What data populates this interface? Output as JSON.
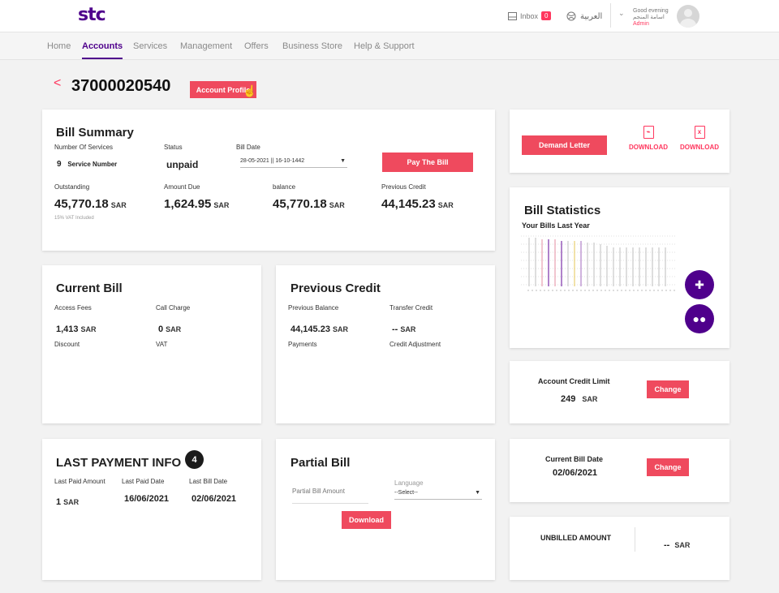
{
  "header": {
    "logo": "stc",
    "inbox_label": "Inbox",
    "inbox_count": "0",
    "language": "العربية",
    "greeting": "Good evening",
    "user_name": "اسامة المنجم",
    "user_role": "Admin"
  },
  "nav": [
    "Home",
    "Accounts",
    "Services",
    "Management",
    "Offers",
    "Business Store",
    "Help & Support"
  ],
  "account": {
    "number": "37000020540",
    "profile_button": "Account Profile"
  },
  "bill_summary": {
    "title": "Bill Summary",
    "services_label": "Number Of Services",
    "services_count": "9",
    "services_unit": "Service Number",
    "status_label": "Status",
    "status_value": "unpaid",
    "bill_date_label": "Bill Date",
    "bill_date_value": "28-05-2021 || 16-10-1442",
    "pay_button": "Pay The Bill",
    "outstanding_label": "Outstanding",
    "outstanding_value": "45,770.18",
    "vat_note": "15% VAT Included",
    "amount_due_label": "Amount Due",
    "amount_due_value": "1,624.95",
    "balance_label": "balance",
    "balance_value": "45,770.18",
    "previous_credit_label": "Previous Credit",
    "previous_credit_value": "44,145.23",
    "currency": "SAR"
  },
  "downloads": {
    "demand_button": "Demand Letter",
    "download_label": "DOWNLOAD"
  },
  "bill_statistics": {
    "title": "Bill Statistics",
    "subtitle": "Your Bills Last Year"
  },
  "current_bill": {
    "title": "Current Bill",
    "access_fees_label": "Access Fees",
    "access_fees_value": "1,413",
    "call_charge_label": "Call Charge",
    "call_charge_value": "0",
    "discount_label": "Discount",
    "vat_label": "VAT",
    "currency": "SAR"
  },
  "previous_credit": {
    "title": "Previous Credit",
    "previous_balance_label": "Previous Balance",
    "previous_balance_value": "44,145.23",
    "transfer_credit_label": "Transfer Credit",
    "transfer_credit_value": "--",
    "payments_label": "Payments",
    "credit_adjustment_label": "Credit Adjustment",
    "currency": "SAR"
  },
  "account_credit_limit": {
    "label": "Account Credit Limit",
    "value": "249",
    "currency": "SAR",
    "change_button": "Change"
  },
  "current_bill_date": {
    "label": "Current Bill Date",
    "value": "02/06/2021",
    "change_button": "Change"
  },
  "last_payment": {
    "title": "LAST PAYMENT INFO",
    "step_badge": "4",
    "paid_amount_label": "Last Paid Amount",
    "paid_amount_value": "1",
    "currency": "SAR",
    "paid_date_label": "Last Paid Date",
    "paid_date_value": "16/06/2021",
    "bill_date_label": "Last Bill Date",
    "bill_date_value": "02/06/2021"
  },
  "partial_bill": {
    "title": "Partial Bill",
    "amount_placeholder": "Partial Bill Amount",
    "language_label": "Language",
    "language_value": "--Select--",
    "download_button": "Download"
  },
  "unbilled": {
    "label": "UNBILLED AMOUNT",
    "value": "--",
    "currency": "SAR"
  },
  "colors": {
    "brand_purple": "#4f008c",
    "accent_red": "#ef4a5e",
    "badge_dark": "#1b1b1b"
  },
  "icons": [
    "pdf-file-icon",
    "excel-file-icon",
    "signpost-icon",
    "chat-icon",
    "hand-cursor-icon",
    "chevron-left-icon"
  ]
}
